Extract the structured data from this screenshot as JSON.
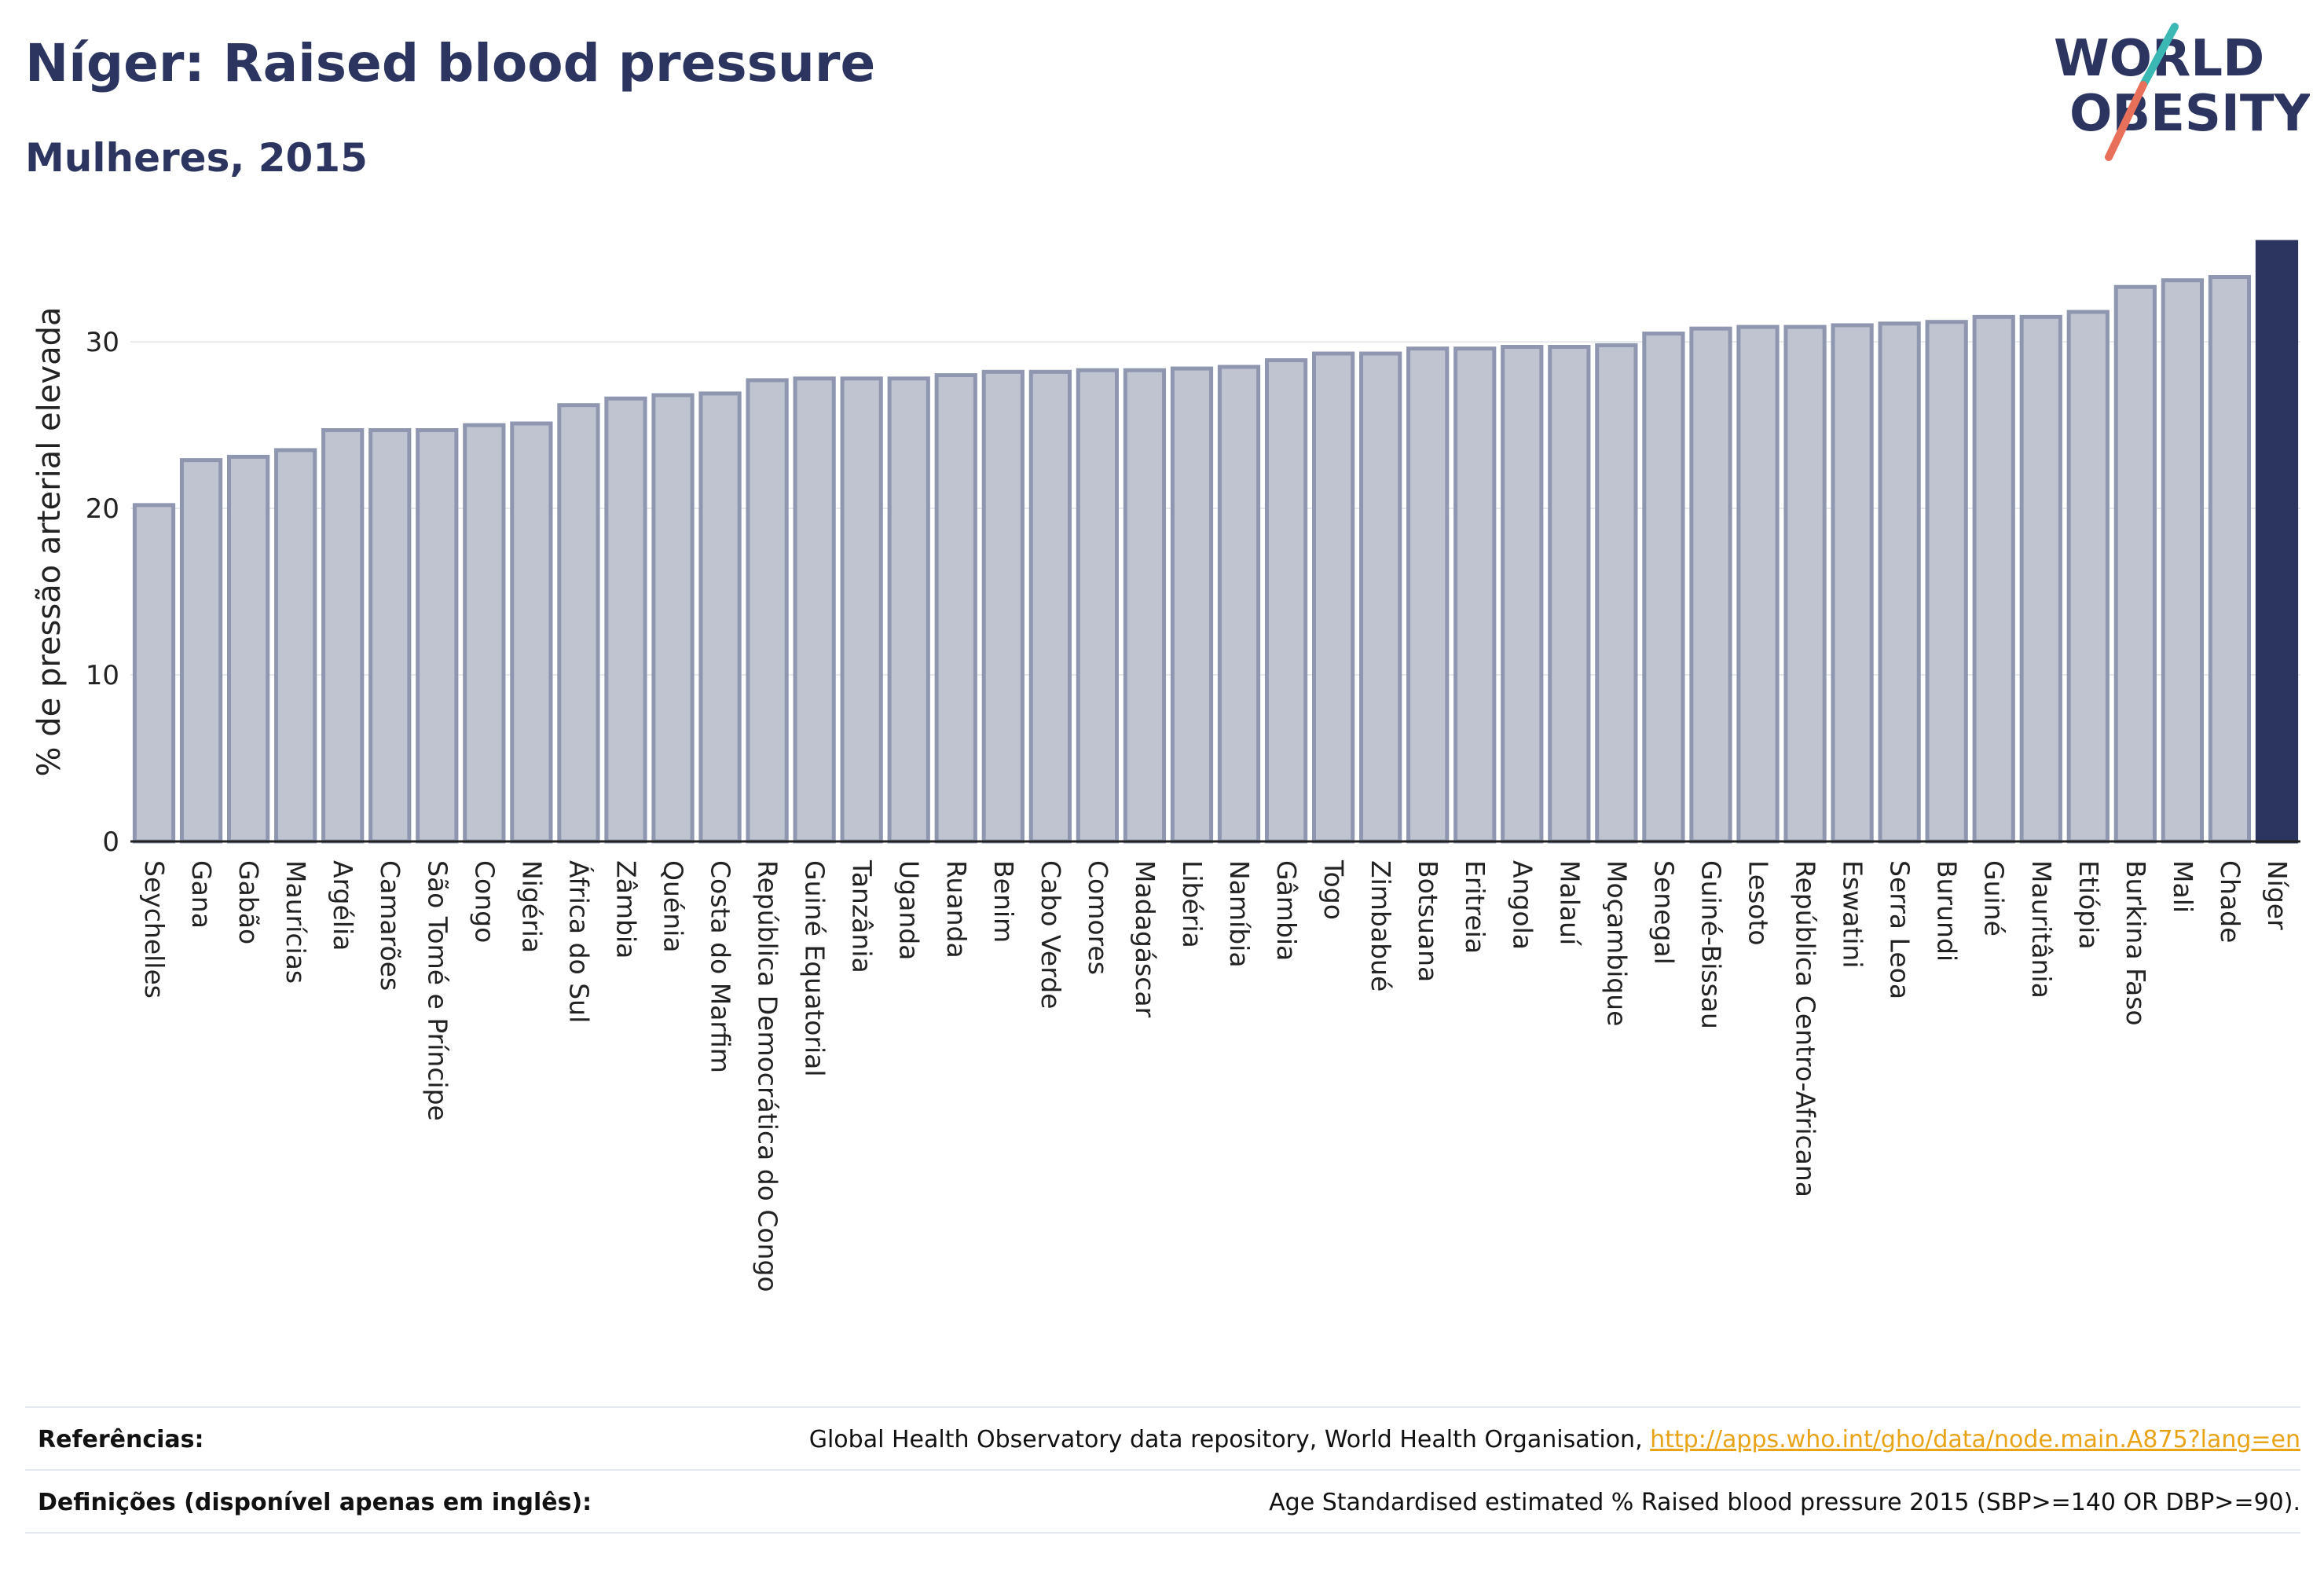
{
  "header": {
    "title": "Níger: Raised blood pressure",
    "subtitle": "Mulheres, 2015"
  },
  "logo": {
    "line1": "WORLD",
    "line2": "OBESITY"
  },
  "colors": {
    "bar_fill": "#c0c4d1",
    "bar_stroke": "#8f96b0",
    "highlight": "#2b3560",
    "grid": "#e8e9ee",
    "logo_teal": "#3bb8b3",
    "logo_coral": "#e8705a",
    "link": "#e8a317"
  },
  "chart_data": {
    "type": "bar",
    "ylabel": "% de pressão arterial elevada",
    "xlabel": "",
    "ylim": [
      0,
      36
    ],
    "yticks": [
      0,
      10,
      20,
      30
    ],
    "grid": true,
    "highlight_category": "Níger",
    "categories": [
      "Seychelles",
      "Gana",
      "Gabão",
      "Maurícias",
      "Argélia",
      "Camarões",
      "São Tomé e Príncipe",
      "Congo",
      "Nigéria",
      "África do Sul",
      "Zâmbia",
      "Quénia",
      "Costa do Marfim",
      "República Democrática do Congo",
      "Guiné Equatorial",
      "Tanzânia",
      "Uganda",
      "Ruanda",
      "Benim",
      "Cabo Verde",
      "Comores",
      "Madagáscar",
      "Libéria",
      "Namíbia",
      "Gâmbia",
      "Togo",
      "Zimbabué",
      "Botsuana",
      "Eritreia",
      "Angola",
      "Malauí",
      "Moçambique",
      "Senegal",
      "Guiné-Bissau",
      "Lesoto",
      "República Centro-Africana",
      "Eswatini",
      "Serra Leoa",
      "Burundi",
      "Guiné",
      "Mauritânia",
      "Etiópia",
      "Burkina Faso",
      "Mali",
      "Chade",
      "Níger"
    ],
    "values": [
      20.2,
      22.9,
      23.1,
      23.5,
      24.7,
      24.7,
      24.7,
      25.0,
      25.1,
      26.2,
      26.6,
      26.8,
      26.9,
      27.7,
      27.8,
      27.8,
      27.8,
      28.0,
      28.2,
      28.2,
      28.3,
      28.3,
      28.4,
      28.5,
      28.9,
      29.3,
      29.3,
      29.6,
      29.6,
      29.7,
      29.7,
      29.8,
      30.5,
      30.8,
      30.9,
      30.9,
      31.0,
      31.1,
      31.2,
      31.5,
      31.5,
      31.8,
      33.3,
      33.7,
      33.9,
      36.0
    ]
  },
  "footer": {
    "references_label": "Referências:",
    "references_text": "Global Health Observatory data repository, World Health Organisation, ",
    "references_link": "http://apps.who.int/gho/data/node.main.A875?lang=en",
    "definitions_label": "Definições (disponível apenas em inglês):",
    "definitions_text": "Age Standardised estimated % Raised blood pressure 2015 (SBP>=140 OR DBP>=90)."
  }
}
